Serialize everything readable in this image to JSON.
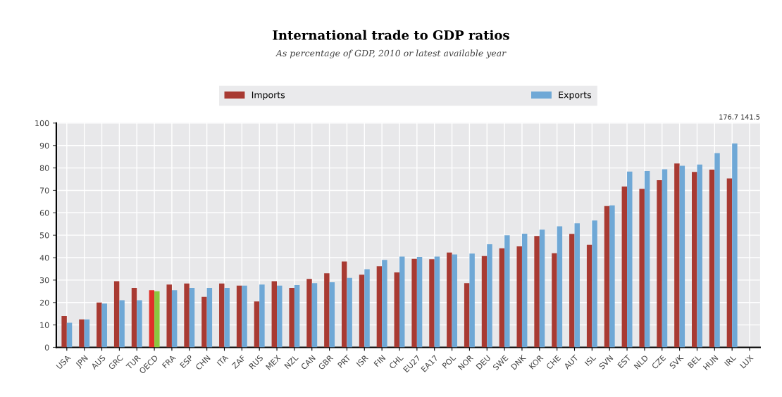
{
  "chart_data": {
    "type": "bar",
    "title": "International trade to GDP ratios",
    "subtitle": "As percentage of GDP, 2010 or latest available year",
    "categories": [
      "USA",
      "JPN",
      "AUS",
      "GRC",
      "TUR",
      "OECD",
      "FRA",
      "ESP",
      "CHN",
      "ITA",
      "ZAF",
      "RUS",
      "MEX",
      "NZL",
      "CAN",
      "GBR",
      "PRT",
      "ISR",
      "FIN",
      "CHL",
      "EU27",
      "EA17",
      "POL",
      "NOR",
      "DEU",
      "SWE",
      "DNK",
      "KOR",
      "CHE",
      "AUT",
      "ISL",
      "SVN",
      "EST",
      "NLD",
      "CZE",
      "SVK",
      "BEL",
      "HUN",
      "IRL",
      "LUX"
    ],
    "series": [
      {
        "name": "Imports",
        "color": "#a83a32",
        "colors": [
          "#a83a32",
          "#a83a32",
          "#a83a32",
          "#a83a32",
          "#a83a32",
          "#e0302a",
          "#a83a32",
          "#a83a32",
          "#a83a32",
          "#a83a32",
          "#a83a32",
          "#a83a32",
          "#a83a32",
          "#a83a32",
          "#a83a32",
          "#a83a32",
          "#a83a32",
          "#a83a32",
          "#a83a32",
          "#a83a32",
          "#a83a32",
          "#a83a32",
          "#a83a32",
          "#a83a32",
          "#a83a32",
          "#a83a32",
          "#a83a32",
          "#a83a32",
          "#a83a32",
          "#a83a32",
          "#a83a32",
          "#a83a32",
          "#a83a32",
          "#a83a32",
          "#a83a32",
          "#a83a32",
          "#a83a32",
          "#a83a32",
          "#a83a32",
          "#a83a32"
        ],
        "values": [
          14,
          12.5,
          20,
          29.5,
          26.5,
          25.5,
          28,
          28.5,
          22.5,
          28.5,
          27.5,
          20.5,
          29.5,
          26.5,
          30.5,
          33,
          38.3,
          32.4,
          36.2,
          33.4,
          39.5,
          39.3,
          42.3,
          28.6,
          40.7,
          44.2,
          45,
          49.7,
          42,
          50.6,
          45.7,
          63,
          71.7,
          70.7,
          74.5,
          82,
          78.2,
          79.2,
          75.3,
          null
        ]
      },
      {
        "name": "Exports",
        "color": "#6fa8d6",
        "colors": [
          "#6fa8d6",
          "#6fa8d6",
          "#6fa8d6",
          "#6fa8d6",
          "#6fa8d6",
          "#8cc63f",
          "#6fa8d6",
          "#6fa8d6",
          "#6fa8d6",
          "#6fa8d6",
          "#6fa8d6",
          "#6fa8d6",
          "#6fa8d6",
          "#6fa8d6",
          "#6fa8d6",
          "#6fa8d6",
          "#6fa8d6",
          "#6fa8d6",
          "#6fa8d6",
          "#6fa8d6",
          "#6fa8d6",
          "#6fa8d6",
          "#6fa8d6",
          "#6fa8d6",
          "#6fa8d6",
          "#6fa8d6",
          "#6fa8d6",
          "#6fa8d6",
          "#6fa8d6",
          "#6fa8d6",
          "#6fa8d6",
          "#6fa8d6",
          "#6fa8d6",
          "#6fa8d6",
          "#6fa8d6",
          "#6fa8d6",
          "#6fa8d6",
          "#6fa8d6",
          "#6fa8d6",
          "#6fa8d6"
        ],
        "values": [
          11,
          12.5,
          19.5,
          21,
          21,
          25,
          25.5,
          26.5,
          26.5,
          26.5,
          27.5,
          28,
          27.5,
          27.8,
          28.6,
          29,
          31,
          34.8,
          39,
          40.5,
          40.3,
          40.5,
          41.4,
          41.8,
          46,
          50,
          50.7,
          52.5,
          54,
          55.3,
          56.6,
          63.3,
          78.4,
          78.6,
          79.4,
          81,
          81.5,
          86.6,
          90.9,
          null
        ]
      }
    ],
    "annotations": [
      "176.7 141.5"
    ],
    "ylim": [
      0,
      100
    ],
    "yticks": [
      0,
      10,
      20,
      30,
      40,
      50,
      60,
      70,
      80,
      90,
      100
    ],
    "grid": true,
    "legend": "top"
  }
}
